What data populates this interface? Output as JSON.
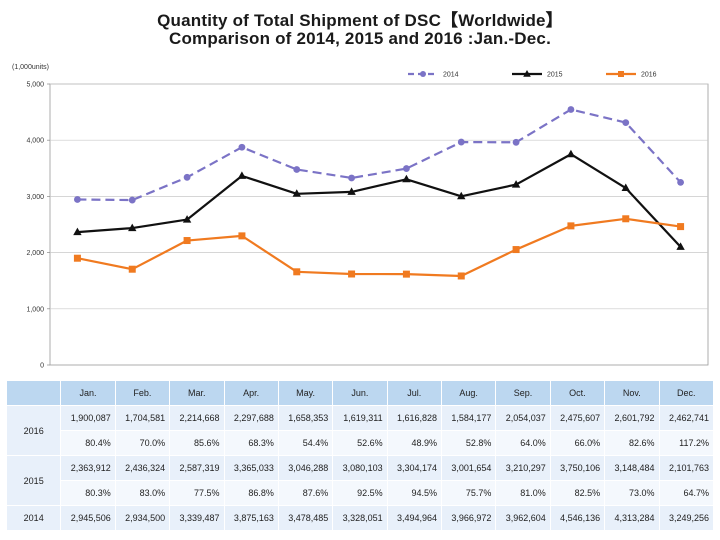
{
  "title_line1": "Quantity of Total Shipment of DSC【Worldwide】",
  "title_line2": "Comparison of 2014, 2015 and 2016 :Jan.-Dec.",
  "chart_data": {
    "type": "line",
    "ylabel": "(1,000units)",
    "ylim": [
      0,
      5000
    ],
    "yticks": [
      0,
      1000,
      2000,
      3000,
      4000,
      5000
    ],
    "ytick_labels": [
      "0",
      "1,000",
      "2,000",
      "3,000",
      "4,000",
      "5,000"
    ],
    "categories": [
      "Jan.",
      "Feb.",
      "Mar.",
      "Apr.",
      "May.",
      "Jun.",
      "Jul.",
      "Aug.",
      "Sep.",
      "Oct.",
      "Nov.",
      "Dec."
    ],
    "legend_position": "top-right",
    "series": [
      {
        "name": "2014",
        "color": "#7b73c6",
        "style": "dashed",
        "marker": "circle",
        "values": [
          2945.506,
          2934.5,
          3339.487,
          3875.163,
          3478.485,
          3328.051,
          3494.964,
          3966.972,
          3962.604,
          4546.136,
          4313.284,
          3249.256
        ]
      },
      {
        "name": "2015",
        "color": "#111111",
        "style": "solid",
        "marker": "triangle",
        "values": [
          2363.912,
          2436.324,
          2587.319,
          3365.033,
          3046.288,
          3080.103,
          3304.174,
          3001.654,
          3210.297,
          3750.106,
          3148.484,
          2101.763
        ]
      },
      {
        "name": "2016",
        "color": "#f07a20",
        "style": "solid",
        "marker": "square",
        "values": [
          1900.087,
          1704.581,
          2214.668,
          2297.688,
          1658.353,
          1619.311,
          1616.828,
          1584.177,
          2054.037,
          2475.607,
          2601.792,
          2462.741
        ]
      }
    ]
  },
  "table": {
    "header": [
      "",
      "Jan.",
      "Feb.",
      "Mar.",
      "Apr.",
      "May.",
      "Jun.",
      "Jul.",
      "Aug.",
      "Sep.",
      "Oct.",
      "Nov.",
      "Dec."
    ],
    "rows": [
      {
        "year": "2016",
        "qty": [
          "1,900,087",
          "1,704,581",
          "2,214,668",
          "2,297,688",
          "1,658,353",
          "1,619,311",
          "1,616,828",
          "1,584,177",
          "2,054,037",
          "2,475,607",
          "2,601,792",
          "2,462,741"
        ],
        "pct": [
          "80.4%",
          "70.0%",
          "85.6%",
          "68.3%",
          "54.4%",
          "52.6%",
          "48.9%",
          "52.8%",
          "64.0%",
          "66.0%",
          "82.6%",
          "117.2%"
        ]
      },
      {
        "year": "2015",
        "qty": [
          "2,363,912",
          "2,436,324",
          "2,587,319",
          "3,365,033",
          "3,046,288",
          "3,080,103",
          "3,304,174",
          "3,001,654",
          "3,210,297",
          "3,750,106",
          "3,148,484",
          "2,101,763"
        ],
        "pct": [
          "80.3%",
          "83.0%",
          "77.5%",
          "86.8%",
          "87.6%",
          "92.5%",
          "94.5%",
          "75.7%",
          "81.0%",
          "82.5%",
          "73.0%",
          "64.7%"
        ]
      },
      {
        "year": "2014",
        "qty": [
          "2,945,506",
          "2,934,500",
          "3,339,487",
          "3,875,163",
          "3,478,485",
          "3,328,051",
          "3,494,964",
          "3,966,972",
          "3,962,604",
          "4,546,136",
          "4,313,284",
          "3,249,256"
        ]
      }
    ]
  }
}
